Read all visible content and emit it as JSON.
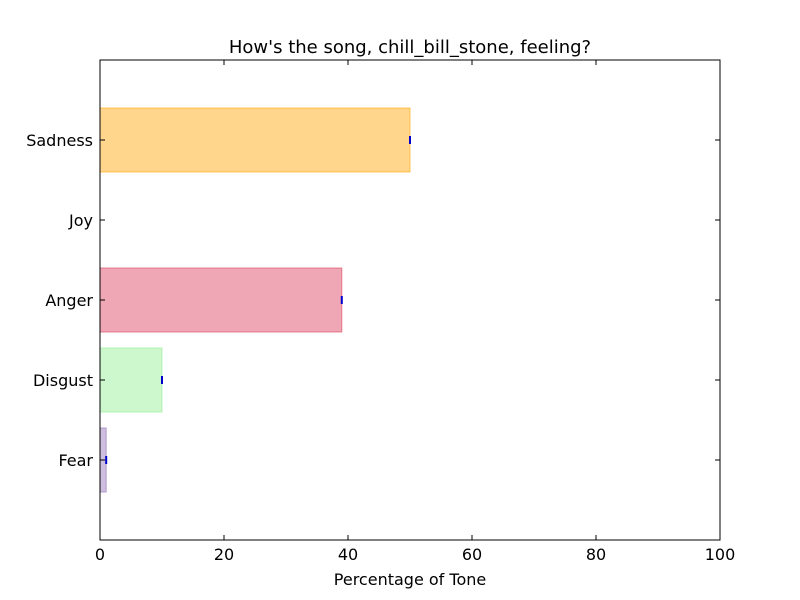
{
  "chart_data": {
    "type": "bar",
    "orientation": "horizontal",
    "title": "How's the song, chill_bill_stone, feeling?",
    "xlabel": "Percentage of Tone",
    "ylabel": "",
    "xlim": [
      0,
      100
    ],
    "x_ticks": [
      0,
      20,
      40,
      60,
      80,
      100
    ],
    "categories": [
      "Fear",
      "Disgust",
      "Anger",
      "Joy",
      "Sadness"
    ],
    "values": [
      1,
      10,
      39,
      0,
      50
    ],
    "colors": [
      "#9370b8",
      "#90ee90",
      "#dc3c5a",
      "#ff6600",
      "#ffa500"
    ],
    "grid": false,
    "legend": "none"
  }
}
